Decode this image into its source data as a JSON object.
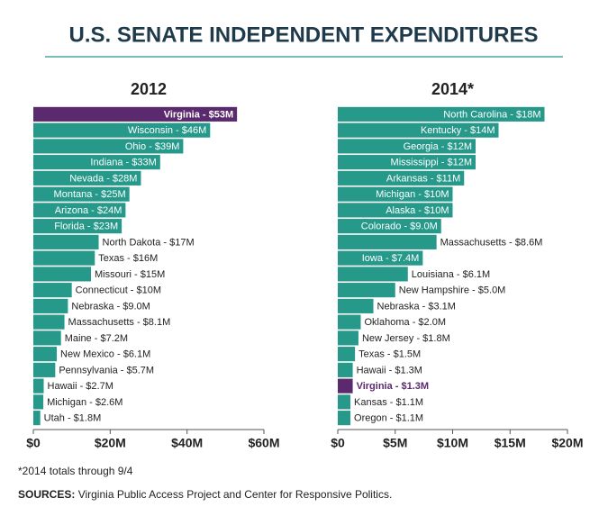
{
  "title": "U.S. SENATE INDEPENDENT EXPENDITURES",
  "footnote": "*2014 totals through 9/4",
  "sources_label": "SOURCES:",
  "sources": "Virginia Public Access Project and Center for Responsive Politics.",
  "chart_data": [
    {
      "type": "bar",
      "orientation": "horizontal",
      "title": "2012",
      "color": "#26998a",
      "categories": [
        "Virginia - $53M",
        "Wisconsin - $46M",
        "Ohio - $39M",
        "Indiana - $33M",
        "Nevada - $28M",
        "Montana - $25M",
        "Arizona - $24M",
        "Florida - $23M",
        "North Dakota - $17M",
        "Texas - $16M",
        "Missouri - $15M",
        "Connecticut - $10M",
        "Nebraska - $9.0M",
        "Massachusetts - $8.1M",
        "Maine - $7.2M",
        "New Mexico - $6.1M",
        "Pennsylvania - $5.7M",
        "Hawaii - $2.7M",
        "Michigan - $2.6M",
        "Utah - $1.8M"
      ],
      "values": [
        53,
        46,
        39,
        33,
        28,
        25,
        24,
        23,
        17,
        16,
        15,
        10,
        9.0,
        8.1,
        7.2,
        6.1,
        5.7,
        2.7,
        2.6,
        1.8
      ],
      "colors": [
        "#5b2a6e",
        "#26998a",
        "#26998a",
        "#26998a",
        "#26998a",
        "#26998a",
        "#26998a",
        "#26998a",
        "#26998a",
        "#26998a",
        "#26998a",
        "#26998a",
        "#26998a",
        "#26998a",
        "#26998a",
        "#26998a",
        "#26998a",
        "#26998a",
        "#26998a",
        "#26998a"
      ],
      "xlim": [
        0,
        60
      ],
      "xticks": [
        {
          "value": 0,
          "label": "$0"
        },
        {
          "value": 20,
          "label": "$20M"
        },
        {
          "value": 40,
          "label": "$40M"
        },
        {
          "value": 60,
          "label": "$60M"
        }
      ]
    },
    {
      "type": "bar",
      "orientation": "horizontal",
      "title": "2014*",
      "color": "#26998a",
      "categories": [
        "North Carolina - $18M",
        "Kentucky - $14M",
        "Georgia - $12M",
        "Mississippi - $12M",
        "Arkansas - $11M",
        "Michigan - $10M",
        "Alaska - $10M",
        "Colorado - $9.0M",
        "Massachusetts - $8.6M",
        "Iowa - $7.4M",
        "Louisiana - $6.1M",
        "New Hampshire - $5.0M",
        "Nebraska - $3.1M",
        "Oklahoma - $2.0M",
        "New Jersey - $1.8M",
        "Texas - $1.5M",
        "Hawaii - $1.3M",
        "Virginia - $1.3M",
        "Kansas - $1.1M",
        "Oregon - $1.1M"
      ],
      "values": [
        18,
        14,
        12,
        12,
        11,
        10,
        10,
        9.0,
        8.6,
        7.4,
        6.1,
        5.0,
        3.1,
        2.0,
        1.8,
        1.5,
        1.3,
        1.3,
        1.1,
        1.1
      ],
      "colors": [
        "#26998a",
        "#26998a",
        "#26998a",
        "#26998a",
        "#26998a",
        "#26998a",
        "#26998a",
        "#26998a",
        "#26998a",
        "#26998a",
        "#26998a",
        "#26998a",
        "#26998a",
        "#26998a",
        "#26998a",
        "#26998a",
        "#26998a",
        "#5b2a6e",
        "#26998a",
        "#26998a"
      ],
      "xlim": [
        0,
        20
      ],
      "xticks": [
        {
          "value": 0,
          "label": "$0"
        },
        {
          "value": 5,
          "label": "$5M"
        },
        {
          "value": 10,
          "label": "$10M"
        },
        {
          "value": 15,
          "label": "$15M"
        },
        {
          "value": 20,
          "label": "$20M"
        }
      ]
    }
  ]
}
